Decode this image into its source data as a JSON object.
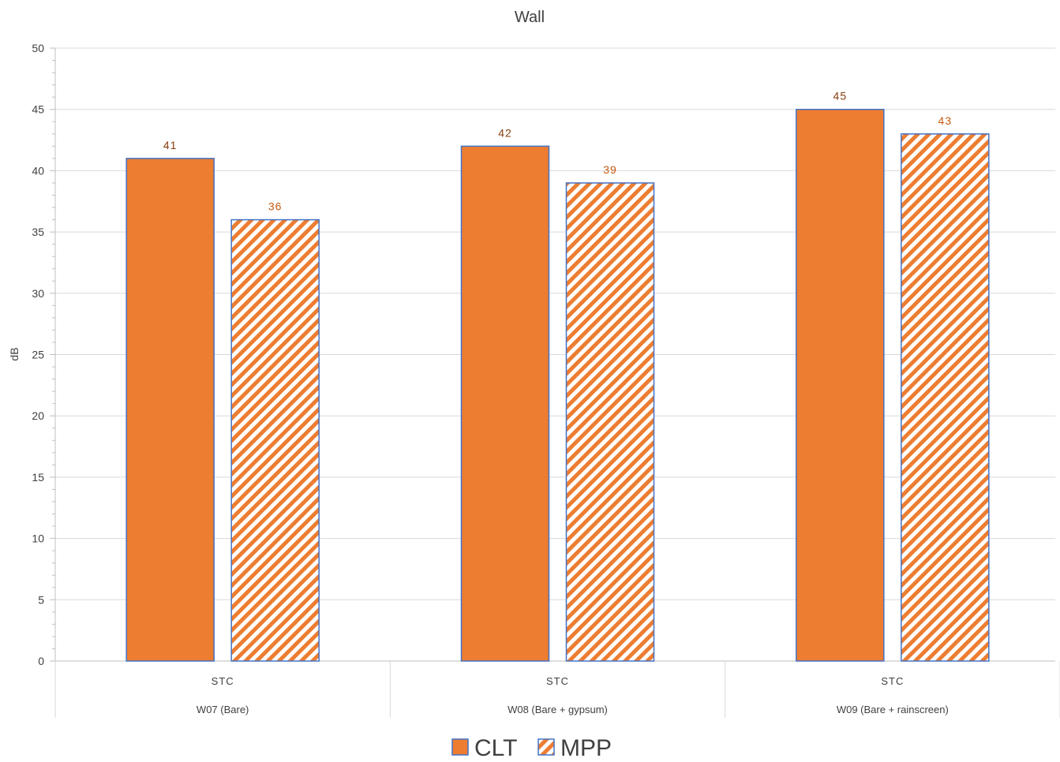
{
  "chart_data": {
    "type": "bar",
    "title": "Wall",
    "ylabel": "dB",
    "xlabel": "",
    "ylim": [
      0,
      50
    ],
    "yticks": [
      0,
      5,
      10,
      15,
      20,
      25,
      30,
      35,
      40,
      45,
      50
    ],
    "grid": true,
    "legend_position": "bottom",
    "groups": [
      {
        "sub_label": "STC",
        "label": "W07 (Bare)"
      },
      {
        "sub_label": "STC",
        "label": "W08 (Bare + gypsum)"
      },
      {
        "sub_label": "STC",
        "label": "W09 (Bare + rainscreen)"
      }
    ],
    "series": [
      {
        "name": "CLT",
        "values": [
          41,
          42,
          45
        ],
        "fill": "solid",
        "color": "#ED7D31",
        "edge_color": "#4472C4",
        "label_color": "#843C0C"
      },
      {
        "name": "MPP",
        "values": [
          36,
          39,
          43
        ],
        "fill": "diagonal-hatch",
        "color": "#ED7D31",
        "edge_color": "#4472C4",
        "label_color": "#C55A11"
      }
    ]
  }
}
